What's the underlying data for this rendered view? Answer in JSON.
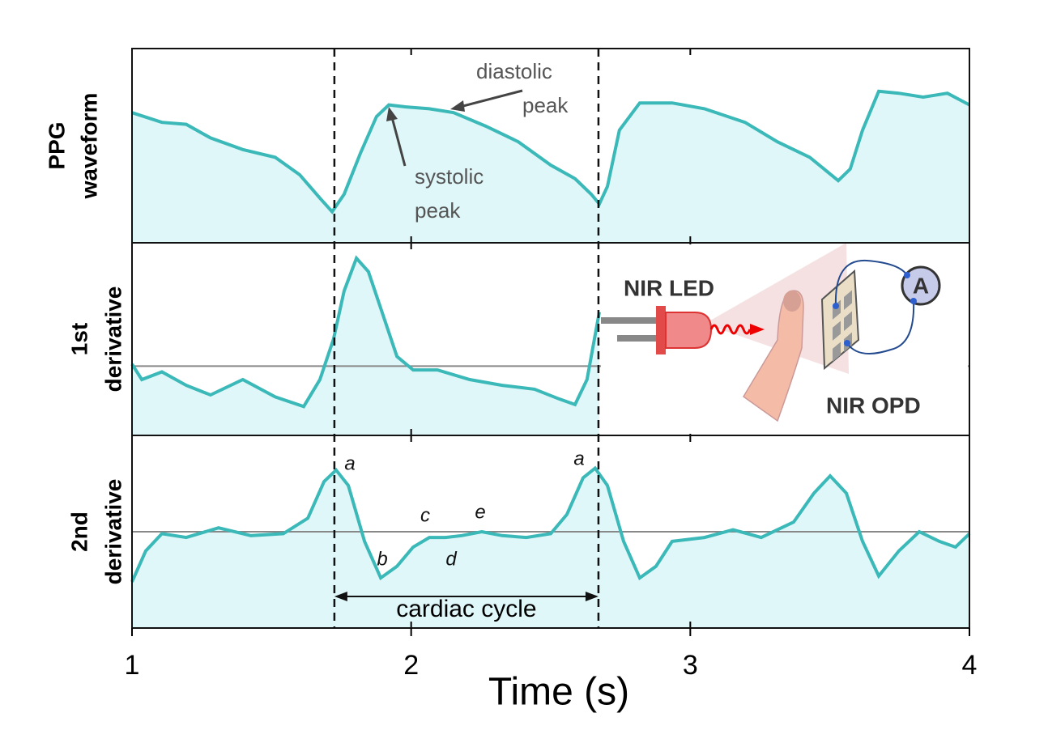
{
  "chart_data": [
    {
      "type": "area",
      "ylabel": [
        "PPG",
        "waveform"
      ],
      "color": "#3bb8b8",
      "fill": "#dff7f9",
      "ylim": [
        0,
        100
      ],
      "x": [
        1.0,
        1.107,
        1.194,
        1.281,
        1.397,
        1.513,
        1.601,
        1.673,
        1.717,
        1.76,
        1.818,
        1.876,
        1.92,
        1.978,
        2.065,
        2.152,
        2.268,
        2.384,
        2.5,
        2.587,
        2.645,
        2.674,
        2.703,
        2.746,
        2.819,
        2.935,
        3.051,
        3.196,
        3.312,
        3.428,
        3.53,
        3.573,
        3.617,
        3.675,
        3.747,
        3.834,
        3.921,
        4.0
      ],
      "values": [
        67,
        62,
        61,
        54,
        48,
        44,
        35,
        23,
        16,
        25,
        46,
        65,
        71,
        70,
        69,
        67,
        60,
        52,
        40,
        33,
        25,
        20,
        29,
        58,
        72,
        72,
        69,
        62,
        52,
        44,
        32,
        38,
        58,
        78,
        77,
        75,
        77,
        71
      ],
      "annotations": [
        "diastolic",
        "peak",
        "systolic",
        "peak"
      ]
    },
    {
      "type": "area",
      "ylabel": [
        "1st",
        "derivative"
      ],
      "color": "#3bb8b8",
      "fill": "#dff7f9",
      "ylim": [
        0,
        100
      ],
      "hline": 36,
      "x": [
        1.0,
        1.035,
        1.107,
        1.194,
        1.281,
        1.397,
        1.513,
        1.615,
        1.673,
        1.722,
        1.76,
        1.804,
        1.847,
        1.891,
        1.949,
        2.007,
        2.094,
        2.21,
        2.326,
        2.442,
        2.529,
        2.587,
        2.63,
        2.674
      ],
      "values": [
        37,
        29,
        33,
        26,
        21,
        29,
        20,
        15,
        29,
        50,
        75,
        92,
        85,
        66,
        41,
        34,
        34,
        29,
        26,
        24,
        19,
        16,
        29,
        64
      ],
      "inset": [
        "NIR LED",
        "NIR OPD",
        "A"
      ]
    },
    {
      "type": "area",
      "ylabel": [
        "2nd",
        "derivative"
      ],
      "color": "#3bb8b8",
      "fill": "#dff7f9",
      "ylim": [
        0,
        100
      ],
      "hline": 50,
      "x": [
        1.0,
        1.049,
        1.107,
        1.194,
        1.31,
        1.426,
        1.542,
        1.63,
        1.688,
        1.731,
        1.775,
        1.833,
        1.891,
        1.949,
        2.007,
        2.065,
        2.123,
        2.181,
        2.253,
        2.326,
        2.413,
        2.5,
        2.558,
        2.616,
        2.659,
        2.703,
        2.761,
        2.819,
        2.877,
        2.935,
        3.051,
        3.153,
        3.254,
        3.37,
        3.443,
        3.501,
        3.559,
        3.617,
        3.675,
        3.747,
        3.82,
        3.892,
        3.95,
        4.0
      ],
      "values": [
        24,
        40,
        49,
        47,
        52,
        48,
        49,
        57,
        76,
        82,
        74,
        45,
        26,
        32,
        42,
        47,
        47,
        48,
        50,
        48,
        47,
        49,
        59,
        78,
        83,
        74,
        45,
        26,
        32,
        45,
        47,
        51,
        47,
        55,
        70,
        79,
        70,
        45,
        27,
        40,
        50,
        45,
        42,
        49
      ],
      "annotations": [
        "a",
        "b",
        "c",
        "d",
        "e",
        "a"
      ],
      "cycle_label": "cardiac cycle",
      "cycle_bounds": [
        1.725,
        2.671
      ],
      "xlim": [
        1,
        4
      ],
      "xticks": [
        1,
        2,
        3,
        4
      ],
      "xlabel": "Time (s)"
    }
  ]
}
